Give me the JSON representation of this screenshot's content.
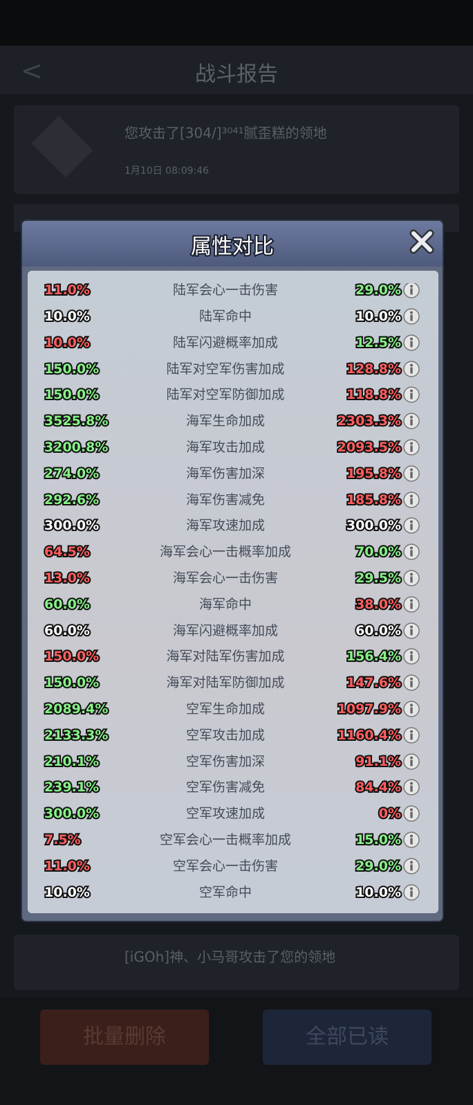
{
  "header": {
    "title": "战斗报告"
  },
  "background_list": [
    {
      "text": "您攻击了[304/]³⁰⁴¹腻歪糕的领地",
      "time": "1月10日 08:09:46"
    },
    {
      "text": "[iGOh]神、小马哥攻击了您的领地"
    }
  ],
  "buttons": {
    "delete": "批量删除",
    "read_all": "全部已读"
  },
  "modal": {
    "title": "属性对比",
    "colors": {
      "red": "#ff5d5d",
      "green": "#86f286",
      "white": "#ffffff"
    },
    "rows": [
      {
        "left": "11.0%",
        "left_color": "red",
        "name": "陆军会心一击伤害",
        "right": "29.0%",
        "right_color": "green"
      },
      {
        "left": "10.0%",
        "left_color": "white",
        "name": "陆军命中",
        "right": "10.0%",
        "right_color": "white"
      },
      {
        "left": "10.0%",
        "left_color": "red",
        "name": "陆军闪避概率加成",
        "right": "12.5%",
        "right_color": "green"
      },
      {
        "left": "150.0%",
        "left_color": "green",
        "name": "陆军对空军伤害加成",
        "right": "128.8%",
        "right_color": "red"
      },
      {
        "left": "150.0%",
        "left_color": "green",
        "name": "陆军对空军防御加成",
        "right": "118.8%",
        "right_color": "red"
      },
      {
        "left": "3525.8%",
        "left_color": "green",
        "name": "海军生命加成",
        "right": "2303.3%",
        "right_color": "red"
      },
      {
        "left": "3200.8%",
        "left_color": "green",
        "name": "海军攻击加成",
        "right": "2093.5%",
        "right_color": "red"
      },
      {
        "left": "274.0%",
        "left_color": "green",
        "name": "海军伤害加深",
        "right": "195.8%",
        "right_color": "red"
      },
      {
        "left": "292.6%",
        "left_color": "green",
        "name": "海军伤害减免",
        "right": "185.8%",
        "right_color": "red"
      },
      {
        "left": "300.0%",
        "left_color": "white",
        "name": "海军攻速加成",
        "right": "300.0%",
        "right_color": "white"
      },
      {
        "left": "64.5%",
        "left_color": "red",
        "name": "海军会心一击概率加成",
        "right": "70.0%",
        "right_color": "green"
      },
      {
        "left": "13.0%",
        "left_color": "red",
        "name": "海军会心一击伤害",
        "right": "29.5%",
        "right_color": "green"
      },
      {
        "left": "60.0%",
        "left_color": "green",
        "name": "海军命中",
        "right": "38.0%",
        "right_color": "red"
      },
      {
        "left": "60.0%",
        "left_color": "white",
        "name": "海军闪避概率加成",
        "right": "60.0%",
        "right_color": "white"
      },
      {
        "left": "150.0%",
        "left_color": "red",
        "name": "海军对陆军伤害加成",
        "right": "156.4%",
        "right_color": "green"
      },
      {
        "left": "150.0%",
        "left_color": "green",
        "name": "海军对陆军防御加成",
        "right": "147.6%",
        "right_color": "red"
      },
      {
        "left": "2089.4%",
        "left_color": "green",
        "name": "空军生命加成",
        "right": "1097.9%",
        "right_color": "red"
      },
      {
        "left": "2133.3%",
        "left_color": "green",
        "name": "空军攻击加成",
        "right": "1160.4%",
        "right_color": "red"
      },
      {
        "left": "210.1%",
        "left_color": "green",
        "name": "空军伤害加深",
        "right": "91.1%",
        "right_color": "red"
      },
      {
        "left": "239.1%",
        "left_color": "green",
        "name": "空军伤害减免",
        "right": "84.4%",
        "right_color": "red"
      },
      {
        "left": "300.0%",
        "left_color": "green",
        "name": "空军攻速加成",
        "right": "0%",
        "right_color": "red"
      },
      {
        "left": "7.5%",
        "left_color": "red",
        "name": "空军会心一击概率加成",
        "right": "15.0%",
        "right_color": "green"
      },
      {
        "left": "11.0%",
        "left_color": "red",
        "name": "空军会心一击伤害",
        "right": "29.0%",
        "right_color": "green"
      },
      {
        "left": "10.0%",
        "left_color": "white",
        "name": "空军命中",
        "right": "10.0%",
        "right_color": "white"
      }
    ]
  }
}
